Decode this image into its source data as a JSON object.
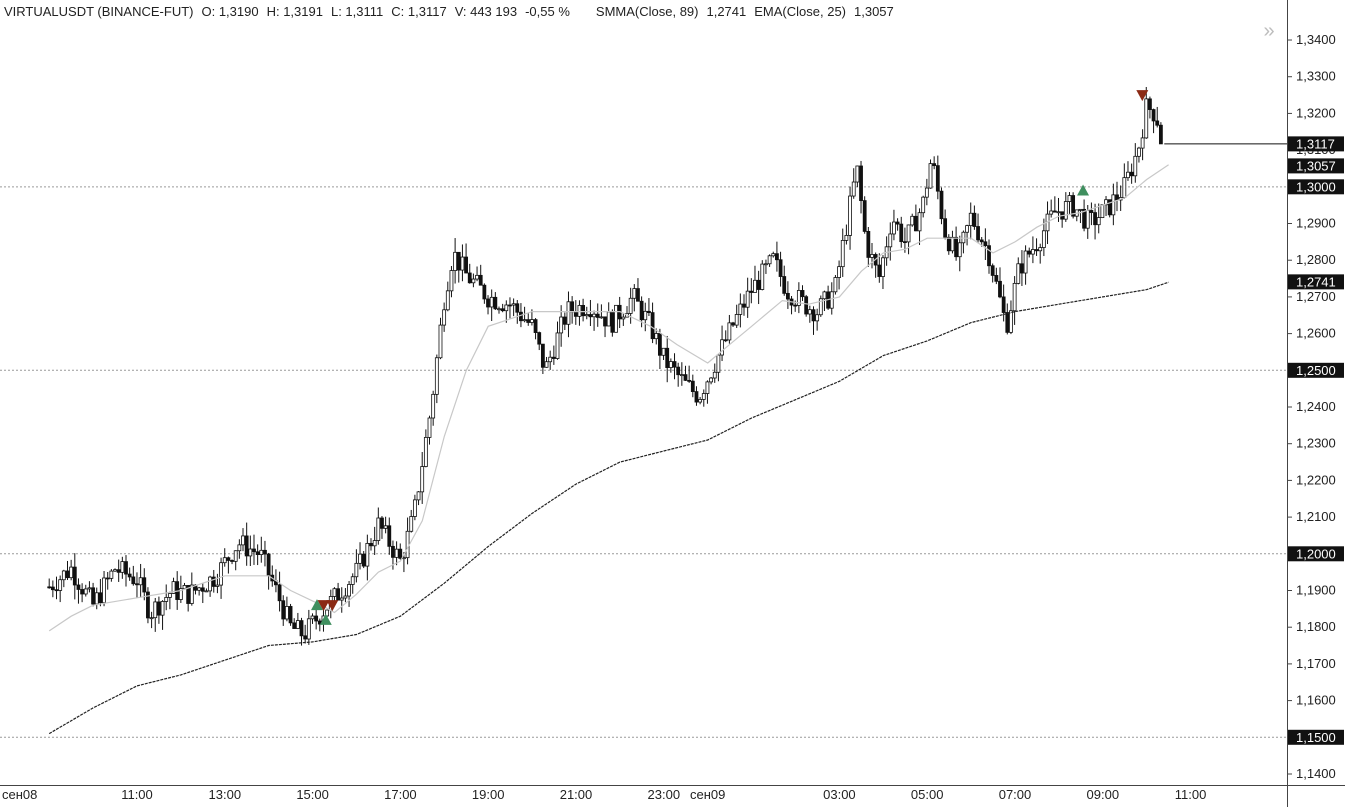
{
  "header": {
    "symbol": "VIRTUALUSDT (BINANCE-FUT)",
    "open": "O: 1,3190",
    "high": "H: 1,3191",
    "low": "L: 1,3111",
    "close": "C: 1,3117",
    "volume": "V: 443 193",
    "change": "-0,55 %",
    "smma_label": "SMMA(Close, 89)",
    "smma_value": "1,2741",
    "ema_label": "EMA(Close, 25)",
    "ema_value": "1,3057"
  },
  "nav_icon": "double-chevron-right-icon",
  "colors": {
    "candle": "#111111",
    "smma": "#222222",
    "ema": "#c8c8c8",
    "up_marker": "#3f8f5f",
    "down_marker": "#8b2a14",
    "tag_bg": "#111111",
    "grid": "#9a9a9a"
  },
  "chart_data": {
    "type": "candlestick",
    "y_axis": {
      "range": [
        1.137,
        1.346
      ],
      "ticks": [
        "1,3400",
        "1,3300",
        "1,3200",
        "1,3100",
        "1,3000",
        "1,2900",
        "1,2800",
        "1,2700",
        "1,2600",
        "1,2500",
        "1,2400",
        "1,2300",
        "1,2200",
        "1,2100",
        "1,2000",
        "1,1900",
        "1,1800",
        "1,1700",
        "1,1600",
        "1,1500",
        "1,1400"
      ],
      "tick_values": [
        1.34,
        1.33,
        1.32,
        1.31,
        1.3,
        1.29,
        1.28,
        1.27,
        1.26,
        1.25,
        1.24,
        1.23,
        1.22,
        1.21,
        1.2,
        1.19,
        1.18,
        1.17,
        1.16,
        1.15,
        1.14
      ]
    },
    "x_axis": {
      "ticks": [
        "сен08",
        "11:00",
        "13:00",
        "15:00",
        "17:00",
        "19:00",
        "21:00",
        "23:00",
        "сен09",
        "03:00",
        "05:00",
        "07:00",
        "09:00",
        "11:00"
      ],
      "tick_hours": [
        0,
        11,
        13,
        15,
        17,
        19,
        21,
        23,
        24,
        27,
        29,
        31,
        33,
        35
      ],
      "start_hour": 9.0,
      "end_hour": 36.3
    },
    "horizontal_levels": [
      1.3,
      1.25,
      1.2,
      1.15
    ],
    "price_tags": [
      {
        "label": "1,3117",
        "value": 1.3117
      },
      {
        "label": "1,3057",
        "value": 1.3057
      },
      {
        "label": "1,3000",
        "value": 1.3
      },
      {
        "label": "1,2741",
        "value": 1.2741
      },
      {
        "label": "1,2500",
        "value": 1.25
      },
      {
        "label": "1,2000",
        "value": 1.2
      },
      {
        "label": "1,1500",
        "value": 1.15
      }
    ],
    "last_close": 1.3117,
    "close_anchor": [
      [
        9.0,
        1.191
      ],
      [
        9.5,
        1.196
      ],
      [
        10.0,
        1.186
      ],
      [
        10.5,
        1.196
      ],
      [
        11.0,
        1.193
      ],
      [
        11.3,
        1.184
      ],
      [
        11.8,
        1.19
      ],
      [
        12.2,
        1.189
      ],
      [
        12.8,
        1.194
      ],
      [
        13.3,
        1.203
      ],
      [
        13.8,
        1.2
      ],
      [
        14.2,
        1.189
      ],
      [
        14.5,
        1.18
      ],
      [
        14.8,
        1.178
      ],
      [
        15.2,
        1.184
      ],
      [
        15.5,
        1.188
      ],
      [
        16.0,
        1.195
      ],
      [
        16.5,
        1.208
      ],
      [
        17.0,
        1.198
      ],
      [
        17.3,
        1.21
      ],
      [
        17.7,
        1.24
      ],
      [
        18.0,
        1.27
      ],
      [
        18.2,
        1.282
      ],
      [
        18.5,
        1.276
      ],
      [
        19.0,
        1.27
      ],
      [
        19.5,
        1.268
      ],
      [
        20.0,
        1.262
      ],
      [
        20.3,
        1.25
      ],
      [
        20.8,
        1.266
      ],
      [
        21.3,
        1.268
      ],
      [
        21.8,
        1.263
      ],
      [
        22.3,
        1.27
      ],
      [
        22.7,
        1.262
      ],
      [
        23.0,
        1.253
      ],
      [
        23.5,
        1.246
      ],
      [
        23.8,
        1.243
      ],
      [
        24.2,
        1.253
      ],
      [
        24.6,
        1.263
      ],
      [
        25.0,
        1.272
      ],
      [
        25.5,
        1.28
      ],
      [
        25.8,
        1.272
      ],
      [
        26.2,
        1.268
      ],
      [
        26.5,
        1.266
      ],
      [
        26.9,
        1.272
      ],
      [
        27.2,
        1.292
      ],
      [
        27.4,
        1.305
      ],
      [
        27.6,
        1.285
      ],
      [
        27.9,
        1.275
      ],
      [
        28.2,
        1.292
      ],
      [
        28.5,
        1.285
      ],
      [
        28.9,
        1.295
      ],
      [
        29.1,
        1.308
      ],
      [
        29.4,
        1.288
      ],
      [
        29.7,
        1.28
      ],
      [
        30.0,
        1.292
      ],
      [
        30.4,
        1.282
      ],
      [
        30.8,
        1.262
      ],
      [
        31.1,
        1.278
      ],
      [
        31.5,
        1.285
      ],
      [
        31.9,
        1.293
      ],
      [
        32.3,
        1.295
      ],
      [
        32.7,
        1.29
      ],
      [
        33.1,
        1.294
      ],
      [
        33.5,
        1.3
      ],
      [
        33.8,
        1.31
      ],
      [
        34.0,
        1.322
      ],
      [
        34.2,
        1.32
      ],
      [
        34.4,
        1.312
      ]
    ],
    "smma_line": [
      [
        9.0,
        1.151
      ],
      [
        10.0,
        1.158
      ],
      [
        11.0,
        1.164
      ],
      [
        12.0,
        1.167
      ],
      [
        13.0,
        1.171
      ],
      [
        14.0,
        1.175
      ],
      [
        15.0,
        1.176
      ],
      [
        16.0,
        1.178
      ],
      [
        17.0,
        1.183
      ],
      [
        18.0,
        1.192
      ],
      [
        19.0,
        1.202
      ],
      [
        20.0,
        1.211
      ],
      [
        21.0,
        1.219
      ],
      [
        22.0,
        1.225
      ],
      [
        23.0,
        1.228
      ],
      [
        24.0,
        1.231
      ],
      [
        25.0,
        1.237
      ],
      [
        26.0,
        1.242
      ],
      [
        27.0,
        1.247
      ],
      [
        28.0,
        1.254
      ],
      [
        29.0,
        1.258
      ],
      [
        30.0,
        1.263
      ],
      [
        31.0,
        1.266
      ],
      [
        32.0,
        1.268
      ],
      [
        33.0,
        1.27
      ],
      [
        34.0,
        1.272
      ],
      [
        34.5,
        1.274
      ]
    ],
    "ema_line": [
      [
        9.0,
        1.179
      ],
      [
        9.5,
        1.183
      ],
      [
        10.0,
        1.186
      ],
      [
        11.0,
        1.188
      ],
      [
        12.0,
        1.19
      ],
      [
        13.0,
        1.194
      ],
      [
        14.0,
        1.194
      ],
      [
        14.5,
        1.19
      ],
      [
        15.2,
        1.186
      ],
      [
        15.5,
        1.184
      ],
      [
        16.0,
        1.189
      ],
      [
        16.5,
        1.195
      ],
      [
        17.0,
        1.198
      ],
      [
        17.5,
        1.209
      ],
      [
        18.0,
        1.232
      ],
      [
        18.5,
        1.25
      ],
      [
        19.0,
        1.262
      ],
      [
        20.0,
        1.266
      ],
      [
        21.0,
        1.266
      ],
      [
        22.0,
        1.266
      ],
      [
        22.7,
        1.262
      ],
      [
        23.3,
        1.257
      ],
      [
        24.0,
        1.252
      ],
      [
        24.5,
        1.257
      ],
      [
        25.0,
        1.262
      ],
      [
        25.7,
        1.269
      ],
      [
        26.3,
        1.268
      ],
      [
        27.0,
        1.27
      ],
      [
        27.5,
        1.277
      ],
      [
        28.0,
        1.282
      ],
      [
        28.5,
        1.283
      ],
      [
        29.0,
        1.286
      ],
      [
        29.5,
        1.286
      ],
      [
        30.0,
        1.286
      ],
      [
        30.5,
        1.282
      ],
      [
        31.0,
        1.285
      ],
      [
        31.5,
        1.289
      ],
      [
        32.0,
        1.292
      ],
      [
        32.5,
        1.293
      ],
      [
        33.0,
        1.295
      ],
      [
        33.5,
        1.297
      ],
      [
        34.0,
        1.302
      ],
      [
        34.5,
        1.306
      ]
    ],
    "signal_markers": [
      {
        "type": "up",
        "hour": 15.1,
        "value": 1.186
      },
      {
        "type": "up",
        "hour": 15.3,
        "value": 1.182
      },
      {
        "type": "down",
        "hour": 15.25,
        "value": 1.186
      },
      {
        "type": "down",
        "hour": 15.45,
        "value": 1.186
      },
      {
        "type": "up",
        "hour": 32.55,
        "value": 1.299
      },
      {
        "type": "down",
        "hour": 33.9,
        "value": 1.325
      }
    ]
  }
}
